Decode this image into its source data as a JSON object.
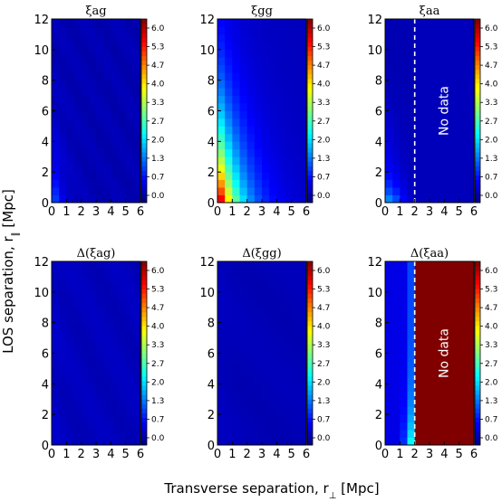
{
  "figure": {
    "ylabel": "LOS separation, r_∥ [Mpc]",
    "xlabel": "Transverse separation, r_⊥ [Mpc]",
    "no_data_label": "No data"
  },
  "colorbar": {
    "ticks": [
      "6.0",
      "5.3",
      "4.7",
      "4.0",
      "3.3",
      "2.7",
      "2.0",
      "1.3",
      "0.7",
      "0.0"
    ],
    "range": [
      0,
      6
    ],
    "colormap": "jet"
  },
  "chart_data": [
    {
      "type": "heatmap",
      "title": "ξag",
      "x_ticks": [
        "0",
        "1",
        "2",
        "3",
        "4",
        "5",
        "6"
      ],
      "y_ticks": [
        "0",
        "2",
        "4",
        "6",
        "8",
        "10",
        "12"
      ],
      "xlim": [
        0,
        6
      ],
      "ylim": [
        0,
        12
      ],
      "field": "ag_main",
      "no_data_from_x": null
    },
    {
      "type": "heatmap",
      "title": "ξgg",
      "x_ticks": [
        "0",
        "1",
        "2",
        "3",
        "4",
        "5",
        "6"
      ],
      "y_ticks": [
        "0",
        "2",
        "4",
        "6",
        "8",
        "10",
        "12"
      ],
      "xlim": [
        0,
        6
      ],
      "ylim": [
        0,
        12
      ],
      "field": "gg_main",
      "no_data_from_x": null
    },
    {
      "type": "heatmap",
      "title": "ξaa",
      "x_ticks": [
        "0",
        "1",
        "2",
        "3",
        "4",
        "5",
        "6"
      ],
      "y_ticks": [
        "0",
        "2",
        "4",
        "6",
        "8",
        "10",
        "12"
      ],
      "xlim": [
        0,
        6
      ],
      "ylim": [
        0,
        12
      ],
      "field": "aa_main",
      "no_data_from_x": 2.0
    },
    {
      "type": "heatmap",
      "title": "Δ(ξag)",
      "x_ticks": [
        "0",
        "1",
        "2",
        "3",
        "4",
        "5",
        "6"
      ],
      "y_ticks": [
        "0",
        "2",
        "4",
        "6",
        "8",
        "10",
        "12"
      ],
      "xlim": [
        0,
        6
      ],
      "ylim": [
        0,
        12
      ],
      "field": "ag_err",
      "no_data_from_x": null
    },
    {
      "type": "heatmap",
      "title": "Δ(ξgg)",
      "x_ticks": [
        "0",
        "1",
        "2",
        "3",
        "4",
        "5",
        "6"
      ],
      "y_ticks": [
        "0",
        "2",
        "4",
        "6",
        "8",
        "10",
        "12"
      ],
      "xlim": [
        0,
        6
      ],
      "ylim": [
        0,
        12
      ],
      "field": "gg_err",
      "no_data_from_x": null
    },
    {
      "type": "heatmap",
      "title": "Δ(ξaa)",
      "x_ticks": [
        "0",
        "1",
        "2",
        "3",
        "4",
        "5",
        "6"
      ],
      "y_ticks": [
        "0",
        "2",
        "4",
        "6",
        "8",
        "10",
        "12"
      ],
      "xlim": [
        0,
        6
      ],
      "ylim": [
        0,
        12
      ],
      "field": "aa_err",
      "no_data_from_x": 2.0,
      "no_data_value": 6.0
    }
  ]
}
